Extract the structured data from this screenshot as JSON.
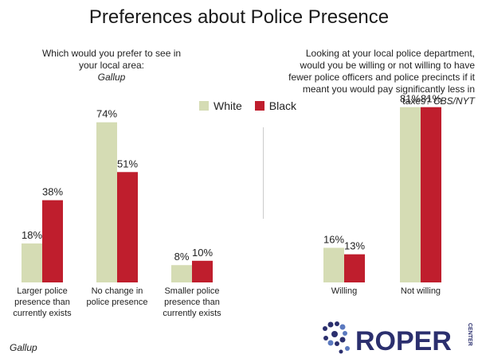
{
  "colors": {
    "white": "#d5dcb4",
    "black": "#bf1e2d"
  },
  "chart_data": {
    "type": "bar",
    "title": "Preferences about Police Presence",
    "legend": [
      "White",
      "Black"
    ],
    "legend_position": "top-center",
    "grid": false,
    "ylim": [
      0,
      100
    ],
    "panels": [
      {
        "subtitle": "Which would you prefer to see in your local area:",
        "source": "Gallup",
        "categories": [
          [
            "Larger police",
            "presence than",
            "currently exists"
          ],
          [
            "No change in",
            "police presence"
          ],
          [
            "Smaller police",
            "presence than",
            "currently exists"
          ]
        ],
        "series": [
          {
            "name": "White",
            "values": [
              18,
              74,
              8
            ]
          },
          {
            "name": "Black",
            "values": [
              38,
              51,
              10
            ]
          }
        ]
      },
      {
        "subtitle": "Looking at your local police department, would you be willing or not willing to have fewer police officers and police precincts if it meant you would pay significantly less in taxes?",
        "source": "CBS/NYT",
        "categories": [
          [
            "Willing"
          ],
          [
            "Not willing"
          ]
        ],
        "series": [
          {
            "name": "White",
            "values": [
              16,
              81
            ]
          },
          {
            "name": "Black",
            "values": [
              13,
              81
            ]
          }
        ]
      }
    ]
  },
  "footer_source": "Gallup",
  "logo": {
    "text": "ROPER",
    "subtext": "CENTER"
  }
}
